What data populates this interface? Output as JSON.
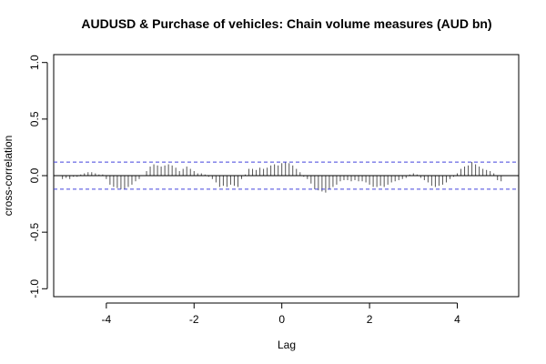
{
  "chart_data": {
    "type": "bar",
    "title": "AUDUSD & Purchase of vehicles: Chain volume measures (AUD bn)",
    "xlabel": "Lag",
    "ylabel": "cross-correlation",
    "xlim": [
      -5.2,
      5.4
    ],
    "ylim": [
      -1.07,
      1.07
    ],
    "x_ticks": [
      -4,
      -2,
      0,
      2,
      4
    ],
    "y_ticks": [
      -1.0,
      -0.5,
      0.0,
      0.5,
      1.0
    ],
    "x_tick_labels": [
      "-4",
      "-2",
      "0",
      "2",
      "4"
    ],
    "y_tick_labels": [
      "-1.0",
      "-0.5",
      "0.0",
      "0.5",
      "1.0"
    ],
    "confidence_band": 0.12,
    "lag_step": 0.0833,
    "lags": [
      -5.0,
      -4.9167,
      -4.8333,
      -4.75,
      -4.6667,
      -4.5833,
      -4.5,
      -4.4167,
      -4.3333,
      -4.25,
      -4.1667,
      -4.0833,
      -4.0,
      -3.9167,
      -3.8333,
      -3.75,
      -3.6667,
      -3.5833,
      -3.5,
      -3.4167,
      -3.3333,
      -3.25,
      -3.1667,
      -3.0833,
      -3.0,
      -2.9167,
      -2.8333,
      -2.75,
      -2.6667,
      -2.5833,
      -2.5,
      -2.4167,
      -2.3333,
      -2.25,
      -2.1667,
      -2.0833,
      -2.0,
      -1.9167,
      -1.8333,
      -1.75,
      -1.6667,
      -1.5833,
      -1.5,
      -1.4167,
      -1.3333,
      -1.25,
      -1.1667,
      -1.0833,
      -1.0,
      -0.9167,
      -0.8333,
      -0.75,
      -0.6667,
      -0.5833,
      -0.5,
      -0.4167,
      -0.3333,
      -0.25,
      -0.1667,
      -0.0833,
      0.0,
      0.0833,
      0.1667,
      0.25,
      0.3333,
      0.4167,
      0.5,
      0.5833,
      0.6667,
      0.75,
      0.8333,
      0.9167,
      1.0,
      1.0833,
      1.1667,
      1.25,
      1.3333,
      1.4167,
      1.5,
      1.5833,
      1.6667,
      1.75,
      1.8333,
      1.9167,
      2.0,
      2.0833,
      2.1667,
      2.25,
      2.3333,
      2.4167,
      2.5,
      2.5833,
      2.6667,
      2.75,
      2.8333,
      2.9167,
      3.0,
      3.0833,
      3.1667,
      3.25,
      3.3333,
      3.4167,
      3.5,
      3.5833,
      3.6667,
      3.75,
      3.8333,
      3.9167,
      4.0,
      4.0833,
      4.1667,
      4.25,
      4.3333,
      4.4167,
      4.5,
      4.5833,
      4.6667,
      4.75,
      4.8333,
      4.9167,
      5.0
    ],
    "values": [
      -0.03,
      -0.02,
      -0.03,
      -0.01,
      -0.01,
      0.01,
      0.02,
      0.03,
      0.03,
      0.02,
      0.01,
      0.01,
      -0.03,
      -0.08,
      -0.1,
      -0.11,
      -0.12,
      -0.12,
      -0.1,
      -0.08,
      -0.05,
      -0.03,
      0.0,
      0.04,
      0.08,
      0.1,
      0.09,
      0.08,
      0.09,
      0.1,
      0.09,
      0.07,
      0.04,
      0.06,
      0.08,
      0.06,
      0.04,
      0.02,
      0.02,
      0.01,
      -0.01,
      -0.03,
      -0.06,
      -0.1,
      -0.09,
      -0.1,
      -0.08,
      -0.09,
      -0.1,
      -0.03,
      0.01,
      0.06,
      0.06,
      0.05,
      0.07,
      0.06,
      0.07,
      0.09,
      0.1,
      0.09,
      0.11,
      0.12,
      0.11,
      0.09,
      0.06,
      0.03,
      -0.01,
      -0.03,
      -0.07,
      -0.12,
      -0.13,
      -0.14,
      -0.15,
      -0.12,
      -0.1,
      -0.08,
      -0.05,
      -0.04,
      -0.04,
      -0.05,
      -0.04,
      -0.05,
      -0.05,
      -0.06,
      -0.08,
      -0.1,
      -0.1,
      -0.09,
      -0.1,
      -0.08,
      -0.06,
      -0.05,
      -0.04,
      -0.03,
      -0.02,
      0.01,
      0.02,
      0.01,
      -0.02,
      -0.04,
      -0.06,
      -0.09,
      -0.1,
      -0.09,
      -0.08,
      -0.06,
      -0.03,
      -0.01,
      0.02,
      0.06,
      0.08,
      0.09,
      0.12,
      0.1,
      0.08,
      0.06,
      0.05,
      0.04,
      0.02,
      -0.04,
      -0.05
    ]
  },
  "colors": {
    "series": "#555555",
    "band": "#4444dd",
    "zero_line": "#000000",
    "frame": "#000000"
  }
}
